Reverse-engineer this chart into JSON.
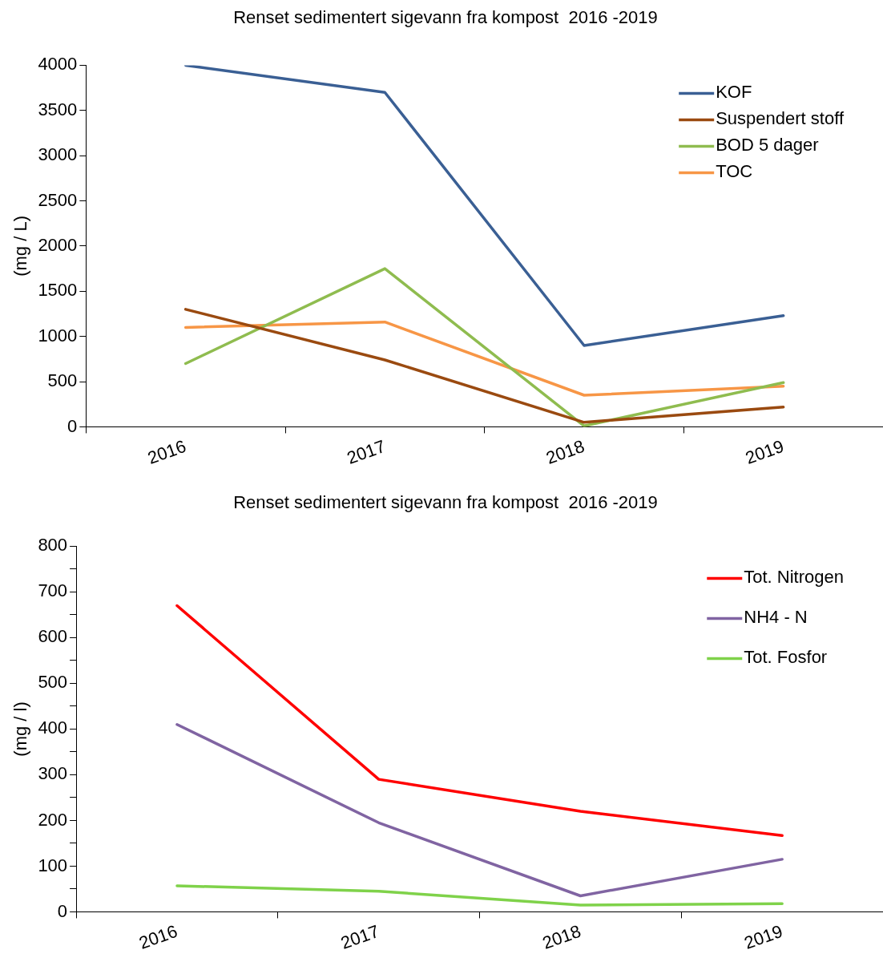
{
  "chart_data": [
    {
      "type": "line",
      "title": "Renset sedimentert sigevann fra kompost  2016 -2019",
      "ylabel": "(mg / L)",
      "categories": [
        "2016",
        "2017",
        "2018",
        "2019"
      ],
      "series": [
        {
          "name": "KOF",
          "color": "#3a5f94",
          "values": [
            4000,
            3700,
            900,
            1230
          ]
        },
        {
          "name": "Suspendert stoff",
          "color": "#9a4a10",
          "values": [
            1300,
            740,
            50,
            220
          ]
        },
        {
          "name": "BOD 5 dager",
          "color": "#8fbc4f",
          "values": [
            700,
            1750,
            10,
            490
          ]
        },
        {
          "name": "TOC",
          "color": "#f79646",
          "values": [
            1100,
            1160,
            350,
            450
          ]
        }
      ],
      "ylim": [
        0,
        4000
      ],
      "yticks": [
        0,
        500,
        1000,
        1500,
        2000,
        2500,
        3000,
        3500,
        4000
      ],
      "grid": false,
      "legend": "top right",
      "marker": "none"
    },
    {
      "type": "line",
      "title": "Renset sedimentert sigevann fra kompost  2016 -2019",
      "ylabel": "(mg / l)",
      "categories": [
        "2016",
        "2017",
        "2018",
        "2019"
      ],
      "series": [
        {
          "name": "Tot. Nitrogen",
          "color": "#ff0000",
          "values": [
            670,
            290,
            220,
            167
          ]
        },
        {
          "name": "NH4 - N",
          "color": "#8064a2",
          "values": [
            410,
            195,
            35,
            115
          ]
        },
        {
          "name": "Tot. Fosfor",
          "color": "#7fd24a",
          "values": [
            57,
            45,
            15,
            18
          ]
        }
      ],
      "ylim": [
        0,
        800
      ],
      "yticks": [
        0,
        {
          "value": 50,
          "label": null
        },
        100,
        {
          "value": 150,
          "label": null
        },
        200,
        {
          "value": 250,
          "label": null
        },
        300,
        {
          "value": 350,
          "label": null
        },
        400,
        {
          "value": 450,
          "label": null
        },
        500,
        {
          "value": 550,
          "label": null
        },
        600,
        {
          "value": 650,
          "label": null
        },
        700,
        {
          "value": 750,
          "label": null
        },
        800
      ],
      "grid": false,
      "legend": "top right",
      "marker": "none"
    }
  ]
}
